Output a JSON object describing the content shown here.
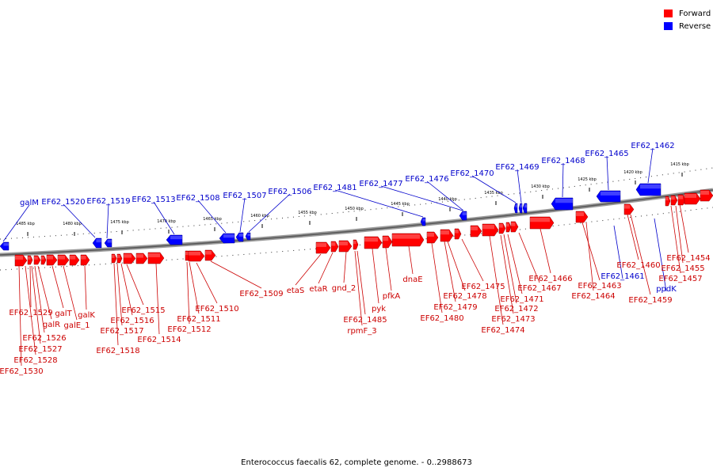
{
  "legend": {
    "forward": {
      "label": "Forward",
      "color": "#ff0000"
    },
    "reverse": {
      "label": "Reverse",
      "color": "#0000ff"
    }
  },
  "footer": "Enterococcus faecalis 62, complete genome. - 0..2988673",
  "colors": {
    "forward_label": "#cc0000",
    "reverse_label": "#0000cc",
    "backbone": "#777777"
  },
  "scale_ticks": [
    "1485 kbp",
    "1480 kbp",
    "1475 kbp",
    "1470 kbp",
    "1465 kbp",
    "1460 kbp",
    "1455 kbp",
    "1450 kbp",
    "1445 kbp",
    "1440 kbp",
    "1435 kbp",
    "1430 kbp",
    "1425 kbp",
    "1420 kbp",
    "1415 kbp"
  ],
  "reverse_genes": [
    "galM",
    "EF62_1520",
    "EF62_1519",
    "EF62_1513",
    "EF62_1508",
    "EF62_1507",
    "EF62_1506",
    "EF62_1481",
    "EF62_1477",
    "EF62_1476",
    "EF62_1470",
    "EF62_1469",
    "EF62_1468",
    "EF62_1465",
    "EF62_1462",
    "EF62_1461",
    "ppdK"
  ],
  "forward_genes": [
    "EF62_1529",
    "galR",
    "EF62_1526",
    "EF62_1527",
    "EF62_1528",
    "EF62_1530",
    "galT",
    "galE_1",
    "galK",
    "EF62_1515",
    "EF62_1516",
    "EF62_1517",
    "EF62_1518",
    "EF62_1510",
    "EF62_1511",
    "EF62_1512",
    "EF62_1514",
    "EF62_1509",
    "etaS",
    "etaR",
    "gnd_2",
    "EF62_1485",
    "rpmF_3",
    "pyk",
    "pfkA",
    "dnaE",
    "EF62_1478",
    "EF62_1479",
    "EF62_1480",
    "EF62_1475",
    "EF62_1471",
    "EF62_1472",
    "EF62_1473",
    "EF62_1474",
    "EF62_1467",
    "EF62_1466",
    "EF62_1463",
    "EF62_1464",
    "EF62_1460",
    "EF62_1459",
    "EF62_1457",
    "EF62_1455",
    "EF62_1454"
  ]
}
